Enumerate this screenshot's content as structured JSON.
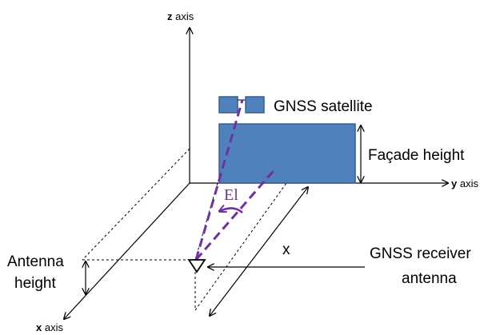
{
  "labels": {
    "z_axis": {
      "letter": "z",
      "word": " axis"
    },
    "y_axis": {
      "letter": "y",
      "word": " axis"
    },
    "x_axis": {
      "letter": "x",
      "word": " axis"
    },
    "satellite": "GNSS satellite",
    "facade_height": "Façade height",
    "elevation": "El",
    "distance": "x",
    "antenna_height_line1": "Antenna",
    "antenna_height_line2": "height",
    "receiver_line1": "GNSS receiver",
    "receiver_line2": "antenna"
  },
  "colors": {
    "facade_fill": "#4F81BD",
    "facade_stroke": "#385D8A",
    "signal_path": "#7030A0",
    "lines": "#000000"
  }
}
